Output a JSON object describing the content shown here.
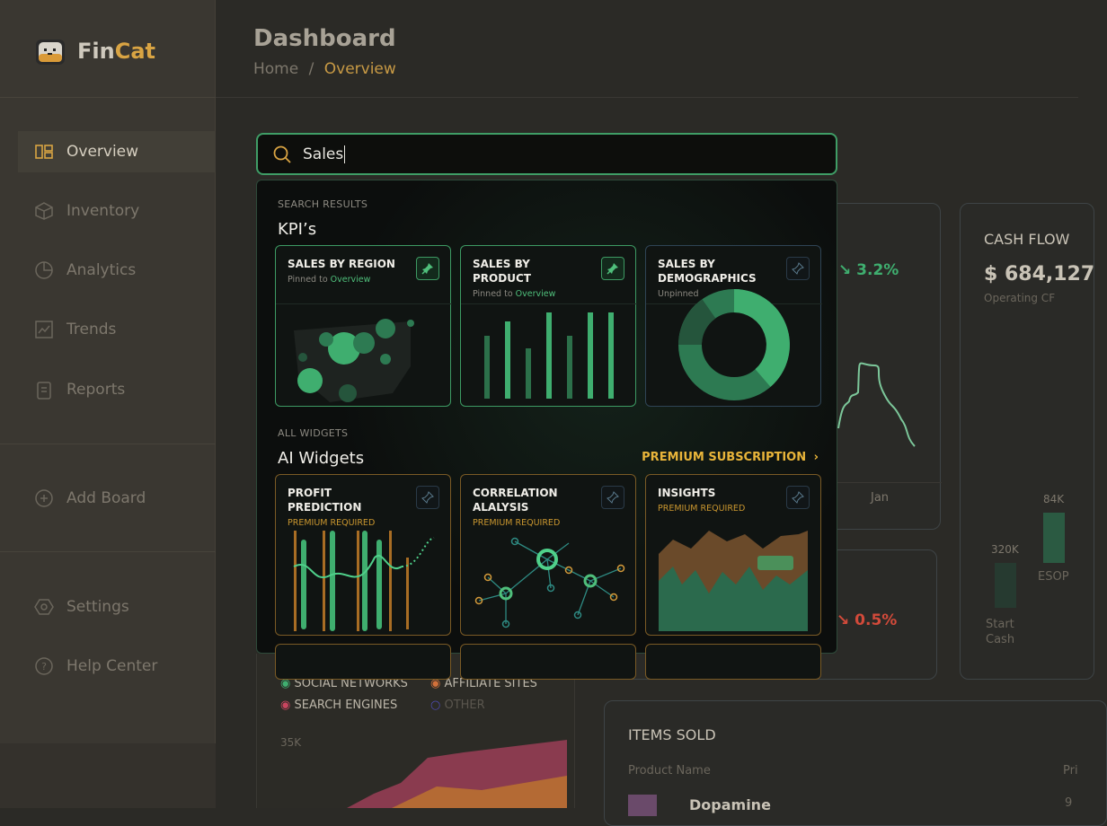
{
  "app": {
    "name_part1": "Fin",
    "name_part2": "Cat"
  },
  "sidebar": {
    "items": [
      {
        "label": "Overview",
        "icon": "layout-icon"
      },
      {
        "label": "Inventory",
        "icon": "box-icon"
      },
      {
        "label": "Analytics",
        "icon": "pie-chart-icon"
      },
      {
        "label": "Trends",
        "icon": "trend-chart-icon"
      },
      {
        "label": "Reports",
        "icon": "clipboard-icon"
      },
      {
        "label": "Add Board",
        "icon": "plus-circle-icon"
      },
      {
        "label": "Settings",
        "icon": "hexagon-settings-icon"
      },
      {
        "label": "Help Center",
        "icon": "help-circle-icon"
      }
    ]
  },
  "header": {
    "title": "Dashboard",
    "breadcrumb": [
      "Home",
      "Overview"
    ],
    "separator": "/"
  },
  "search": {
    "value": "Sales"
  },
  "results": {
    "section1": "SEARCH RESULTS",
    "kpi_heading": "KPI’s",
    "kpis": [
      {
        "title": "SALES BY REGION",
        "status_prefix": "Pinned to ",
        "status_link": "Overview",
        "pinned": true
      },
      {
        "title": "SALES BY PRODUCT",
        "status_prefix": "Pinned to ",
        "status_link": "Overview",
        "pinned": true
      },
      {
        "title": "SALES BY DEMOGRAPHICS",
        "status_prefix": "Unpinned",
        "status_link": "",
        "pinned": false
      }
    ],
    "section2": "ALL WIDGETS",
    "ai_heading": "AI Widgets",
    "premium_link": "PREMIUM SUBSCRIPTION",
    "premium_chevron": "›",
    "widgets": [
      {
        "title": "PROFIT PREDICTION",
        "status": "PREMIUM REQUIRED"
      },
      {
        "title": "CORRELATION ALALYSIS",
        "status": "PREMIUM REQUIRED"
      },
      {
        "title": "INSIGHTS",
        "status": "PREMIUM REQUIRED"
      }
    ]
  },
  "background": {
    "metric1": "3.2%",
    "metric1_label": "Jan",
    "metric2": "0.5%",
    "cashflow": {
      "title": "CASH FLOW",
      "value": "$ 684,127",
      "sub": "Operating CF",
      "bars": [
        {
          "label": "Start Cash",
          "value": "320K"
        },
        {
          "label": "ESOP",
          "value": "84K"
        }
      ]
    },
    "legend": [
      "SOCIAL NETWORKS",
      "AFFILIATE SITES",
      "SEARCH ENGINES",
      "OTHER"
    ],
    "legend_colors": [
      "#3fae6f",
      "#d2703a",
      "#c9455f",
      "#4d4ab0"
    ],
    "axis_tick": "35K",
    "items_sold": {
      "title": "ITEMS SOLD",
      "col1": "Product Name",
      "col2": "Pri",
      "row1": "Dopamine",
      "row1_price": "9"
    }
  },
  "colors": {
    "accent": "#d9a443",
    "green": "#3fae6f",
    "red": "#d24a3a"
  }
}
